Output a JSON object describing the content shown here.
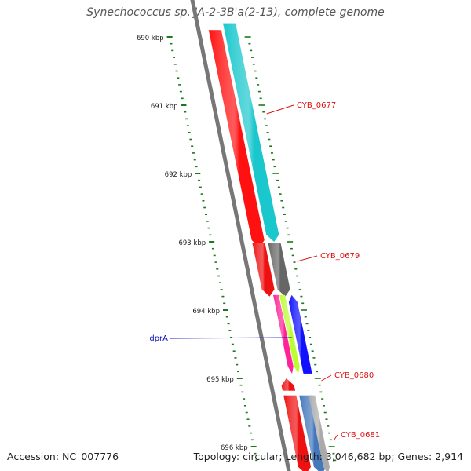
{
  "title": "Synechococcus sp. JA-2-3B'a(2-13), complete genome",
  "footer": {
    "accession": "Accession: NC_007776",
    "summary": "Topology: circular; Length: 3,046,682 bp; Genes: 2,914"
  },
  "ruler": {
    "labels": [
      "690 kbp",
      "691 kbp",
      "692 kbp",
      "693 kbp",
      "694 kbp",
      "695 kbp",
      "696 kbp"
    ],
    "color": "#1a7a1a"
  },
  "genes": [
    {
      "name": "CYB_0677",
      "color": "#ff1111",
      "track": "red",
      "start": 689.9,
      "end": 693.08,
      "strand": "+"
    },
    {
      "name": "",
      "color": "#19c7cc",
      "track": "cyan",
      "start": 689.8,
      "end": 693.0,
      "strand": "+"
    },
    {
      "name": "CYB_0679",
      "color": "#ee1111",
      "track": "red",
      "start": 693.02,
      "end": 693.8,
      "strand": "+"
    },
    {
      "name": "",
      "color": "#666666",
      "track": "cyan",
      "start": 693.02,
      "end": 693.8,
      "strand": "+"
    },
    {
      "name": "",
      "color": "#ff2299",
      "track": "left1",
      "start": 693.78,
      "end": 694.93,
      "strand": "+"
    },
    {
      "name": "",
      "color": "#bbff33",
      "track": "left2",
      "start": 693.78,
      "end": 694.93,
      "strand": "+"
    },
    {
      "name": "dprA",
      "color": "#1111ff",
      "track": "left3",
      "start": 693.78,
      "end": 694.93,
      "strand": "-"
    },
    {
      "name": "CYB_0680",
      "color": "#ee1111",
      "track": "red",
      "start": 695.0,
      "end": 695.18,
      "strand": "-"
    },
    {
      "name": "CYB_0681",
      "color": "#ee1111",
      "track": "red",
      "start": 695.25,
      "end": 696.4,
      "strand": "+"
    },
    {
      "name": "",
      "color": "#4477bb",
      "track": "cyan",
      "start": 695.25,
      "end": 696.4,
      "strand": "+"
    },
    {
      "name": "",
      "color": "#aaaaaa",
      "track": "right2",
      "start": 695.25,
      "end": 696.4,
      "strand": "+"
    }
  ],
  "label_colors": {
    "plus": "#dd1111",
    "minus": "#1111bb"
  }
}
